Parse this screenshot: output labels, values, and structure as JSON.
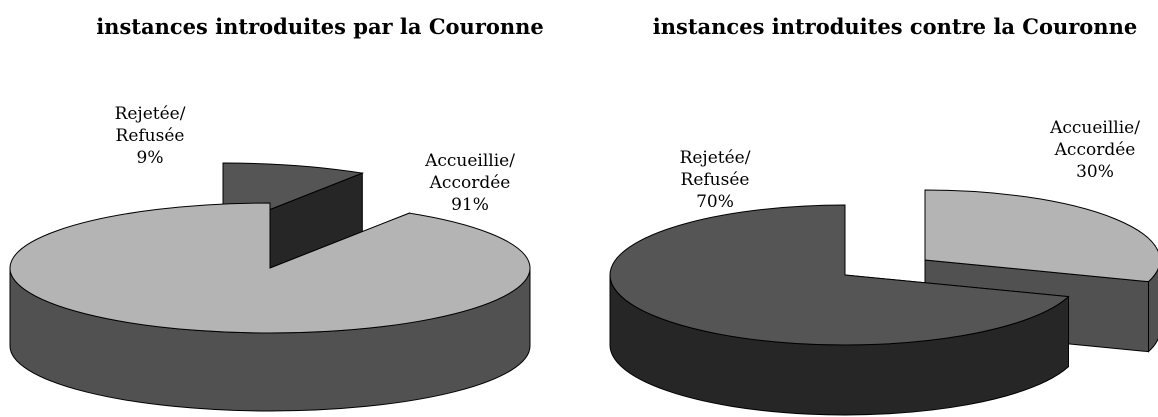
{
  "chart_data": [
    {
      "type": "pie3d",
      "title": "instances introduites par la Couronne",
      "categories": [
        "Rejetée/ Refusée",
        "Accueillie/ Accordée"
      ],
      "values": [
        9,
        91
      ],
      "value_labels": [
        "9%",
        "91%"
      ],
      "colors": [
        "#555555",
        "#b4b4b4"
      ]
    },
    {
      "type": "pie3d",
      "title": "instances introduites contre la Couronne",
      "categories": [
        "Accueillie/ Accordée",
        "Rejetée/ Refusée"
      ],
      "values": [
        30,
        70
      ],
      "value_labels": [
        "30%",
        "70%"
      ],
      "colors": [
        "#b4b4b4",
        "#555555"
      ]
    }
  ]
}
